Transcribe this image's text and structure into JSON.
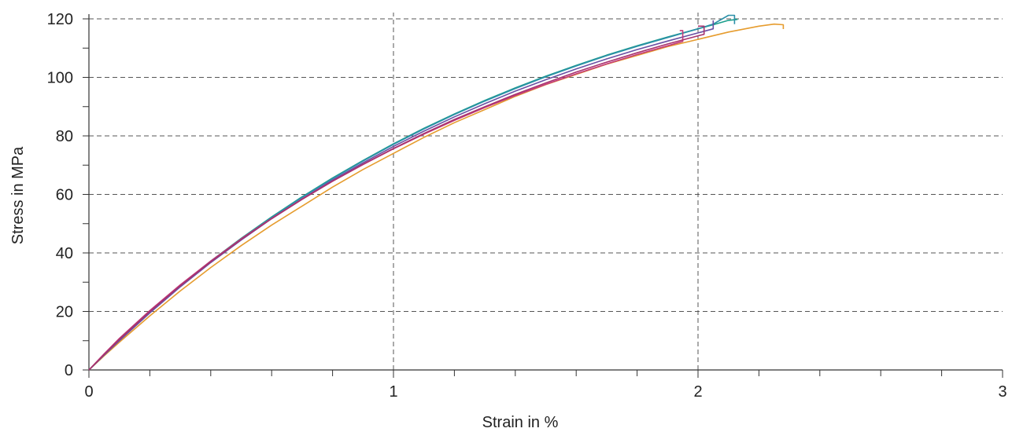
{
  "chart_data": {
    "type": "line",
    "xlabel": "Strain in %",
    "ylabel": "Stress in MPa",
    "xlim": [
      0,
      3
    ],
    "ylim": [
      0,
      120
    ],
    "x_ticks": [
      "0",
      "1",
      "2",
      "3"
    ],
    "y_ticks": [
      "0",
      "20",
      "40",
      "60",
      "80",
      "100",
      "120"
    ],
    "grid": true,
    "legend": "none",
    "series": [
      {
        "color": "#e69c2e",
        "points": [
          [
            0,
            0
          ],
          [
            0.05,
            4.8
          ],
          [
            0.1,
            9.5
          ],
          [
            0.2,
            18.5
          ],
          [
            0.3,
            27
          ],
          [
            0.4,
            35
          ],
          [
            0.5,
            42.5
          ],
          [
            0.6,
            49.5
          ],
          [
            0.7,
            56
          ],
          [
            0.8,
            62.5
          ],
          [
            0.9,
            68.5
          ],
          [
            1.0,
            74
          ],
          [
            1.1,
            79.5
          ],
          [
            1.2,
            84.5
          ],
          [
            1.3,
            89
          ],
          [
            1.4,
            93.5
          ],
          [
            1.5,
            97.5
          ],
          [
            1.6,
            101
          ],
          [
            1.7,
            104.5
          ],
          [
            1.8,
            107.5
          ],
          [
            1.9,
            110.5
          ],
          [
            2.0,
            113
          ],
          [
            2.1,
            115.5
          ],
          [
            2.2,
            117.5
          ],
          [
            2.25,
            118.2
          ],
          [
            2.28,
            118
          ],
          [
            2.28,
            116.5
          ]
        ]
      },
      {
        "color": "#1a9e8c",
        "points": [
          [
            0,
            0
          ],
          [
            0.05,
            5.2
          ],
          [
            0.1,
            10.2
          ],
          [
            0.2,
            19.8
          ],
          [
            0.3,
            28.8
          ],
          [
            0.4,
            37.2
          ],
          [
            0.5,
            45
          ],
          [
            0.6,
            52.3
          ],
          [
            0.7,
            59.2
          ],
          [
            0.8,
            65.6
          ],
          [
            0.9,
            71.6
          ],
          [
            1.0,
            77.3
          ],
          [
            1.1,
            82.6
          ],
          [
            1.2,
            87.5
          ],
          [
            1.3,
            92.1
          ],
          [
            1.4,
            96.4
          ],
          [
            1.5,
            100.4
          ],
          [
            1.6,
            104.1
          ],
          [
            1.7,
            107.6
          ],
          [
            1.8,
            110.8
          ],
          [
            1.9,
            113.8
          ],
          [
            2.0,
            116.6
          ],
          [
            2.05,
            118
          ],
          [
            2.1,
            119.5
          ],
          [
            2.13,
            119.8
          ]
        ]
      },
      {
        "color": "#2b8fa8",
        "points": [
          [
            0,
            0
          ],
          [
            0.05,
            5.1
          ],
          [
            0.1,
            10.1
          ],
          [
            0.2,
            19.6
          ],
          [
            0.3,
            28.6
          ],
          [
            0.4,
            37
          ],
          [
            0.5,
            44.8
          ],
          [
            0.6,
            52.1
          ],
          [
            0.7,
            59
          ],
          [
            0.8,
            65.4
          ],
          [
            0.9,
            71.4
          ],
          [
            1.0,
            77.1
          ],
          [
            1.1,
            82.4
          ],
          [
            1.2,
            87.3
          ],
          [
            1.3,
            91.9
          ],
          [
            1.4,
            96.2
          ],
          [
            1.5,
            100.2
          ],
          [
            1.6,
            103.9
          ],
          [
            1.7,
            107.4
          ],
          [
            1.8,
            110.6
          ],
          [
            1.9,
            113.6
          ],
          [
            2.0,
            116.6
          ],
          [
            2.05,
            118.2
          ],
          [
            2.1,
            121.2
          ],
          [
            2.12,
            121.2
          ],
          [
            2.12,
            118.2
          ]
        ]
      },
      {
        "color": "#6a4fa3",
        "points": [
          [
            0,
            0
          ],
          [
            0.05,
            5.1
          ],
          [
            0.1,
            10
          ],
          [
            0.2,
            19.5
          ],
          [
            0.3,
            28.4
          ],
          [
            0.4,
            36.7
          ],
          [
            0.5,
            44.4
          ],
          [
            0.6,
            51.7
          ],
          [
            0.7,
            58.5
          ],
          [
            0.8,
            64.9
          ],
          [
            0.9,
            70.8
          ],
          [
            1.0,
            76.4
          ],
          [
            1.1,
            81.6
          ],
          [
            1.2,
            86.5
          ],
          [
            1.3,
            91
          ],
          [
            1.4,
            95.3
          ],
          [
            1.5,
            99.2
          ],
          [
            1.6,
            102.9
          ],
          [
            1.7,
            106.3
          ],
          [
            1.8,
            109.5
          ],
          [
            1.9,
            112.4
          ],
          [
            2.0,
            115.2
          ],
          [
            2.05,
            116.6
          ],
          [
            2.05,
            119.5
          ]
        ]
      },
      {
        "color": "#c23b7a",
        "points": [
          [
            0,
            0
          ],
          [
            0.05,
            5.5
          ],
          [
            0.1,
            10.8
          ],
          [
            0.2,
            20.3
          ],
          [
            0.3,
            29.1
          ],
          [
            0.4,
            37.2
          ],
          [
            0.5,
            44.8
          ],
          [
            0.6,
            51.8
          ],
          [
            0.7,
            58.4
          ],
          [
            0.8,
            64.5
          ],
          [
            0.9,
            70.2
          ],
          [
            1.0,
            75.6
          ],
          [
            1.1,
            80.6
          ],
          [
            1.2,
            85.3
          ],
          [
            1.3,
            89.7
          ],
          [
            1.4,
            93.8
          ],
          [
            1.5,
            97.6
          ],
          [
            1.6,
            101.2
          ],
          [
            1.7,
            104.6
          ],
          [
            1.8,
            107.8
          ],
          [
            1.9,
            110.8
          ],
          [
            1.95,
            112.3
          ],
          [
            1.95,
            116
          ],
          [
            1.94,
            116
          ]
        ]
      },
      {
        "color": "#a8326e",
        "points": [
          [
            0,
            0
          ],
          [
            0.05,
            5.3
          ],
          [
            0.1,
            10.5
          ],
          [
            0.2,
            20
          ],
          [
            0.3,
            28.8
          ],
          [
            0.4,
            37
          ],
          [
            0.5,
            44.6
          ],
          [
            0.6,
            51.7
          ],
          [
            0.7,
            58.3
          ],
          [
            0.8,
            64.5
          ],
          [
            0.9,
            70.3
          ],
          [
            1.0,
            75.7
          ],
          [
            1.1,
            80.8
          ],
          [
            1.2,
            85.6
          ],
          [
            1.3,
            90
          ],
          [
            1.4,
            94.2
          ],
          [
            1.5,
            98.1
          ],
          [
            1.6,
            101.8
          ],
          [
            1.7,
            105.2
          ],
          [
            1.8,
            108.4
          ],
          [
            1.9,
            111.4
          ],
          [
            2.0,
            114.2
          ],
          [
            2.02,
            114.7
          ],
          [
            2.02,
            117.5
          ],
          [
            2.0,
            117.5
          ]
        ]
      }
    ]
  }
}
